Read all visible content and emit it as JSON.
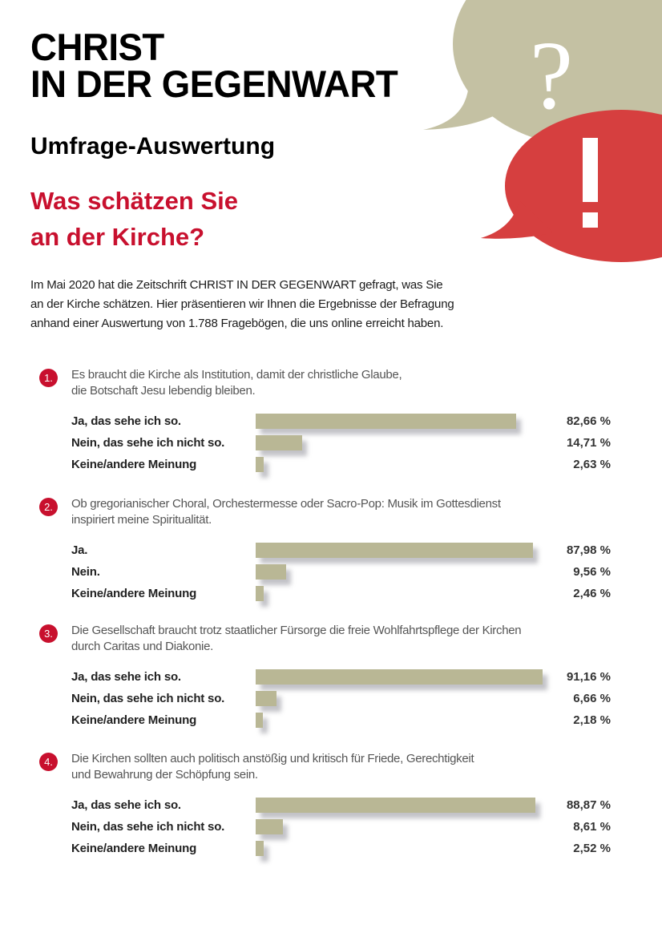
{
  "header": {
    "title_lines": [
      "CHRIST",
      "IN DER GEGENWART"
    ],
    "subtitle": "Umfrage-Auswertung",
    "headline_lines": [
      "Was schätzen Sie",
      "an der Kirche?"
    ]
  },
  "decoration": {
    "question_bubble": {
      "glyph": "?",
      "color": "#c4c1a3",
      "icon": "speech-bubble-question-icon"
    },
    "exclamation_bubble": {
      "glyph": "!",
      "color": "#d63f3f",
      "icon": "speech-bubble-exclamation-icon"
    }
  },
  "intro": {
    "lines": [
      "Im Mai 2020 hat die Zeitschrift CHRIST IN DER GEGENWART gefragt, was Sie",
      "an der Kirche schätzen. Hier präsentieren wir Ihnen die Ergebnisse der Befragung",
      "anhand einer Auswertung von 1.788 Fragebögen, die uns online erreicht haben."
    ]
  },
  "colors": {
    "accent_red": "#c8102e",
    "bar": "#b9b795",
    "bubble_beige": "#c4c1a3",
    "bubble_red": "#d63f3f"
  },
  "questions": [
    {
      "number": "1.",
      "text_lines": [
        "Es braucht die Kirche als Institution, damit der christliche Glaube,",
        "die Botschaft Jesu lebendig bleiben."
      ],
      "answers": [
        {
          "label": "Ja, das sehe ich so.",
          "value": 82.66,
          "display": "82,66 %"
        },
        {
          "label": "Nein, das sehe ich nicht so.",
          "value": 14.71,
          "display": "14,71 %"
        },
        {
          "label": "Keine/andere Meinung",
          "value": 2.63,
          "display": "2,63 %"
        }
      ]
    },
    {
      "number": "2.",
      "text_lines": [
        "Ob gregorianischer Choral, Orchestermesse oder Sacro-Pop: Musik im Gottesdienst",
        "inspiriert meine Spiritualität."
      ],
      "answers": [
        {
          "label": "Ja.",
          "value": 87.98,
          "display": "87,98 %"
        },
        {
          "label": "Nein.",
          "value": 9.56,
          "display": "9,56 %"
        },
        {
          "label": "Keine/andere Meinung",
          "value": 2.46,
          "display": "2,46 %"
        }
      ]
    },
    {
      "number": "3.",
      "text_lines": [
        "Die Gesellschaft braucht trotz staatlicher Fürsorge die freie Wohlfahrtspflege der Kirchen",
        "durch Caritas und Diakonie."
      ],
      "answers": [
        {
          "label": "Ja, das sehe ich so.",
          "value": 91.16,
          "display": "91,16 %"
        },
        {
          "label": "Nein, das sehe ich nicht so.",
          "value": 6.66,
          "display": "6,66 %"
        },
        {
          "label": "Keine/andere Meinung",
          "value": 2.18,
          "display": "2,18 %"
        }
      ]
    },
    {
      "number": "4.",
      "text_lines": [
        "Die Kirchen sollten auch politisch anstößig und kritisch für Friede, Gerechtigkeit",
        "und Bewahrung der Schöpfung sein."
      ],
      "answers": [
        {
          "label": "Ja, das sehe ich so.",
          "value": 88.87,
          "display": "88,87 %"
        },
        {
          "label": "Nein, das sehe ich nicht so.",
          "value": 8.61,
          "display": "8,61 %"
        },
        {
          "label": "Keine/andere Meinung",
          "value": 2.52,
          "display": "2,52 %"
        }
      ]
    }
  ],
  "chart_data": [
    {
      "type": "bar",
      "orientation": "horizontal",
      "title": "1. Es braucht die Kirche als Institution, damit der christliche Glaube, die Botschaft Jesu lebendig bleiben.",
      "categories": [
        "Ja, das sehe ich so.",
        "Nein, das sehe ich nicht so.",
        "Keine/andere Meinung"
      ],
      "values": [
        82.66,
        14.71,
        2.63
      ],
      "unit": "%",
      "xlim": [
        0,
        100
      ],
      "grid": false,
      "legend": null
    },
    {
      "type": "bar",
      "orientation": "horizontal",
      "title": "2. Ob gregorianischer Choral, Orchestermesse oder Sacro-Pop: Musik im Gottesdienst inspiriert meine Spiritualität.",
      "categories": [
        "Ja.",
        "Nein.",
        "Keine/andere Meinung"
      ],
      "values": [
        87.98,
        9.56,
        2.46
      ],
      "unit": "%",
      "xlim": [
        0,
        100
      ],
      "grid": false,
      "legend": null
    },
    {
      "type": "bar",
      "orientation": "horizontal",
      "title": "3. Die Gesellschaft braucht trotz staatlicher Fürsorge die freie Wohlfahrtspflege der Kirchen durch Caritas und Diakonie.",
      "categories": [
        "Ja, das sehe ich so.",
        "Nein, das sehe ich nicht so.",
        "Keine/andere Meinung"
      ],
      "values": [
        91.16,
        6.66,
        2.18
      ],
      "unit": "%",
      "xlim": [
        0,
        100
      ],
      "grid": false,
      "legend": null
    },
    {
      "type": "bar",
      "orientation": "horizontal",
      "title": "4. Die Kirchen sollten auch politisch anstößig und kritisch für Friede, Gerechtigkeit und Bewahrung der Schöpfung sein.",
      "categories": [
        "Ja, das sehe ich so.",
        "Nein, das sehe ich nicht so.",
        "Keine/andere Meinung"
      ],
      "values": [
        88.87,
        8.61,
        2.52
      ],
      "unit": "%",
      "xlim": [
        0,
        100
      ],
      "grid": false,
      "legend": null
    }
  ]
}
